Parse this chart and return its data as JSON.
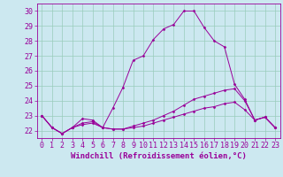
{
  "background_color": "#cce8f0",
  "grid_color": "#99ccbb",
  "line_color": "#990099",
  "marker_color": "#990099",
  "xlabel": "Windchill (Refroidissement éolien,°C)",
  "xlabel_fontsize": 6.5,
  "tick_fontsize": 6.0,
  "ylim": [
    21.5,
    30.5
  ],
  "xlim": [
    -0.5,
    23.5
  ],
  "yticks": [
    22,
    23,
    24,
    25,
    26,
    27,
    28,
    29,
    30
  ],
  "xticks": [
    0,
    1,
    2,
    3,
    4,
    5,
    6,
    7,
    8,
    9,
    10,
    11,
    12,
    13,
    14,
    15,
    16,
    17,
    18,
    19,
    20,
    21,
    22,
    23
  ],
  "series": [
    [
      23.0,
      22.2,
      21.8,
      22.2,
      22.8,
      22.7,
      22.2,
      23.5,
      24.9,
      26.7,
      27.0,
      28.1,
      28.8,
      29.1,
      30.0,
      30.0,
      28.9,
      28.0,
      27.6,
      25.1,
      24.1,
      22.7,
      22.9,
      22.2
    ],
    [
      23.0,
      22.2,
      21.8,
      22.2,
      22.5,
      22.6,
      22.2,
      22.1,
      22.1,
      22.3,
      22.5,
      22.7,
      23.0,
      23.3,
      23.7,
      24.1,
      24.3,
      24.5,
      24.7,
      24.8,
      24.0,
      22.7,
      22.9,
      22.2
    ],
    [
      23.0,
      22.2,
      21.8,
      22.2,
      22.4,
      22.5,
      22.2,
      22.1,
      22.1,
      22.2,
      22.3,
      22.5,
      22.7,
      22.9,
      23.1,
      23.3,
      23.5,
      23.6,
      23.8,
      23.9,
      23.4,
      22.7,
      22.9,
      22.2
    ]
  ]
}
